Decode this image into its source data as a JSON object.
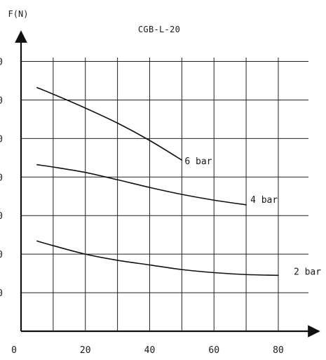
{
  "chart_data": {
    "type": "line",
    "title": "CGB-L-20",
    "xlabel": "",
    "ylabel": "F(N)",
    "xlim": [
      0,
      80
    ],
    "ylim": [
      0,
      70
    ],
    "grid": true,
    "x_ticks": [
      "0",
      "20",
      "40",
      "60",
      "80"
    ],
    "y_ticks": [
      "0",
      "0",
      "0",
      "0",
      "0",
      "0",
      "0"
    ],
    "series": [
      {
        "name": "6 bar",
        "x": [
          5,
          10,
          20,
          30,
          40,
          50
        ],
        "y": [
          63.2,
          61.5,
          57.9,
          54.0,
          49.5,
          44.4
        ]
      },
      {
        "name": "4 bar",
        "x": [
          5,
          10,
          20,
          30,
          40,
          50,
          60,
          70
        ],
        "y": [
          43.2,
          42.6,
          41.2,
          39.3,
          37.3,
          35.5,
          34.0,
          32.8
        ]
      },
      {
        "name": "2 bar",
        "x": [
          5,
          10,
          20,
          30,
          40,
          50,
          60,
          70,
          80
        ],
        "y": [
          23.4,
          22.2,
          20.0,
          18.4,
          17.2,
          16.0,
          15.2,
          14.7,
          14.5
        ]
      }
    ]
  }
}
